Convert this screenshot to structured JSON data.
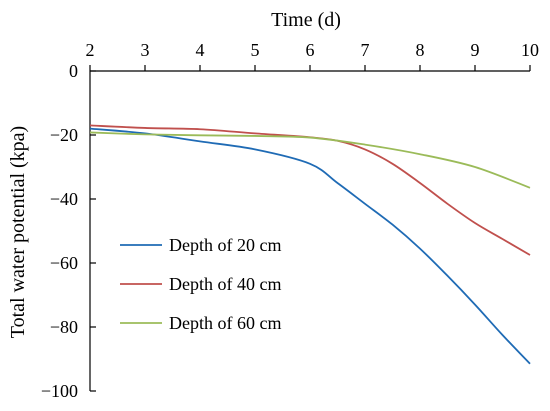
{
  "chart_data": {
    "type": "line",
    "xlabel": "Time (d)",
    "ylabel": "Total water potential (kpa)",
    "x_axis_position": "top",
    "xlim": [
      2,
      10
    ],
    "ylim": [
      -100,
      0
    ],
    "xticks": [
      2,
      3,
      4,
      5,
      6,
      7,
      8,
      9,
      10
    ],
    "yticks": [
      0,
      -20,
      -40,
      -60,
      -80,
      -100
    ],
    "ytick_labels": [
      "0",
      "−20",
      "−40",
      "−60",
      "−80",
      "−100"
    ],
    "grid": false,
    "legend_position": "bottom-left",
    "series": [
      {
        "name": "Depth of 20 cm",
        "color": "#1f6bb5",
        "x": [
          2,
          3,
          4,
          5,
          6,
          6.5,
          7,
          7.5,
          8,
          8.5,
          9,
          9.5,
          10
        ],
        "y": [
          -18,
          -19.5,
          -22,
          -24.5,
          -29,
          -35,
          -41.5,
          -48,
          -55.5,
          -64,
          -73,
          -82.5,
          -91.5
        ]
      },
      {
        "name": "Depth of 40 cm",
        "color": "#c0504d",
        "x": [
          2,
          3,
          4,
          5,
          6,
          6.5,
          7,
          7.5,
          8,
          8.5,
          9,
          9.5,
          10
        ],
        "y": [
          -17,
          -17.8,
          -18.2,
          -19.5,
          -20.7,
          -21.8,
          -24.5,
          -29,
          -35,
          -41.5,
          -47.5,
          -52.5,
          -57.5
        ]
      },
      {
        "name": "Depth of 60 cm",
        "color": "#9bbb59",
        "x": [
          2,
          3,
          4,
          5,
          6,
          7,
          8,
          9,
          10
        ],
        "y": [
          -19.2,
          -19.8,
          -20.1,
          -20.3,
          -20.8,
          -23,
          -26,
          -30,
          -36.5
        ]
      }
    ]
  }
}
